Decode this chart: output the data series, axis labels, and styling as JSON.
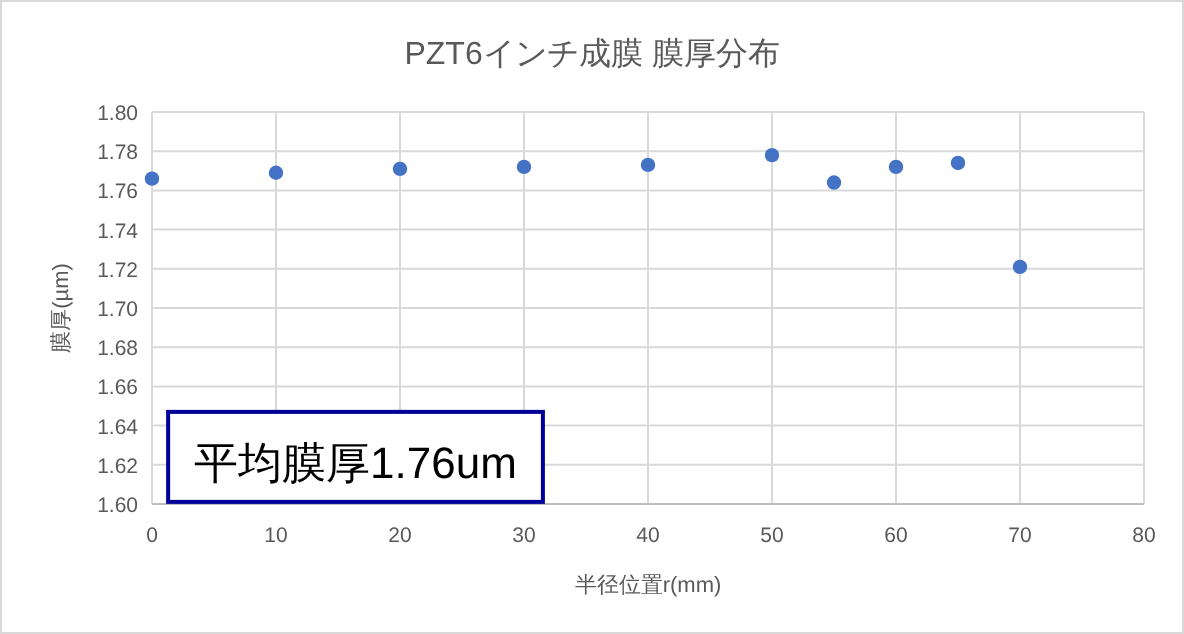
{
  "chart_data": {
    "type": "scatter",
    "title": "PZT6インチ成膜 膜厚分布",
    "xlabel": "半径位置r(mm)",
    "ylabel": "膜厚(µm)",
    "x": [
      0,
      10,
      20,
      30,
      40,
      50,
      55,
      60,
      65,
      70
    ],
    "series": [
      {
        "color": "#4472c4",
        "values": [
          1.766,
          1.769,
          1.771,
          1.772,
          1.773,
          1.778,
          1.764,
          1.772,
          1.774,
          1.721
        ]
      }
    ],
    "xlim": [
      0,
      80
    ],
    "xticks": [
      0,
      10,
      20,
      30,
      40,
      50,
      60,
      70,
      80
    ],
    "ylim": [
      1.6,
      1.8
    ],
    "yticks": [
      {
        "value": 1.6,
        "label": "1.60"
      },
      1.62,
      1.64,
      1.66,
      1.68,
      {
        "value": 1.7,
        "label": "1.70"
      },
      1.72,
      1.74,
      1.76,
      1.78,
      {
        "value": 1.8,
        "label": "1.80"
      }
    ],
    "grid": true,
    "marker": "circle",
    "annotations": [
      "平均膜厚1.76um"
    ]
  }
}
